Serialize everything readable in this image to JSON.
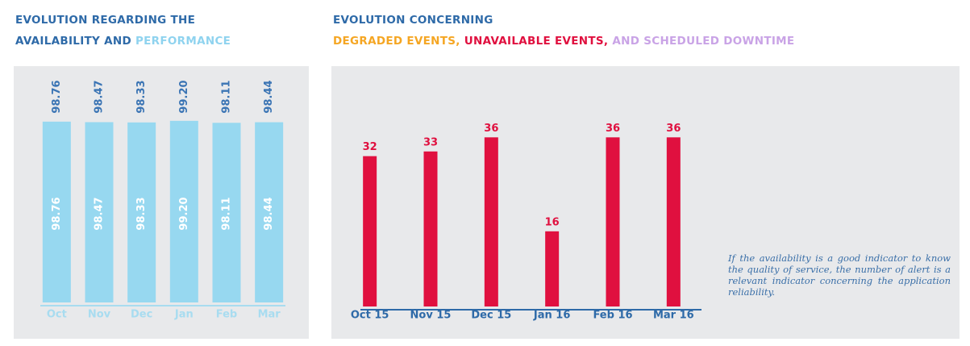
{
  "chart_data": [
    {
      "type": "bar",
      "title": "EVOLUTION REGARDING THE",
      "subtitle": [
        {
          "text": "AVAILABILITY AND",
          "color": "#2e6aa8"
        },
        {
          "text": "PERFORMANCE",
          "color": "#8fd3ef"
        }
      ],
      "categories": [
        "Oct",
        "Nov",
        "Dec",
        "Jan",
        "Feb",
        "Mar"
      ],
      "series": [
        {
          "color": "#3a74b4",
          "values": [
            98.76,
            98.47,
            98.33,
            99.2,
            98.11,
            98.44
          ],
          "value_labels": [
            "98.76",
            "98.47",
            "98.33",
            "99.20",
            "98.11",
            "98.44"
          ]
        },
        {
          "color": "#97d8f0",
          "values": [
            98.76,
            98.47,
            98.33,
            99.2,
            98.11,
            98.44
          ],
          "value_labels": [
            "98.76",
            "98.47",
            "98.33",
            "99.20",
            "98.11",
            "98.44"
          ]
        }
      ],
      "ylim": [
        0,
        100
      ]
    },
    {
      "type": "bar",
      "title": "EVOLUTION CONCERNING",
      "subtitle": [
        {
          "text": "DEGRADED EVENTS,",
          "color": "#f5a623"
        },
        {
          "text": "UNAVAILABLE EVENTS,",
          "color": "#e0103f"
        },
        {
          "text": "AND SCHEDULED DOWNTIME",
          "color": "#c9a3e6"
        }
      ],
      "categories": [
        "Oct 15",
        "Nov 15",
        "Dec 15",
        "Jan 16",
        "Feb 16",
        "Mar 16"
      ],
      "series": [
        {
          "color": "#e0103f",
          "values": [
            32,
            33,
            36,
            16,
            36,
            36
          ]
        }
      ],
      "ylim": [
        0,
        40
      ]
    }
  ],
  "note": "If the availability is a good indicator to know the quality of service, the number of alert is a relevant indicator concerning the application reliability."
}
